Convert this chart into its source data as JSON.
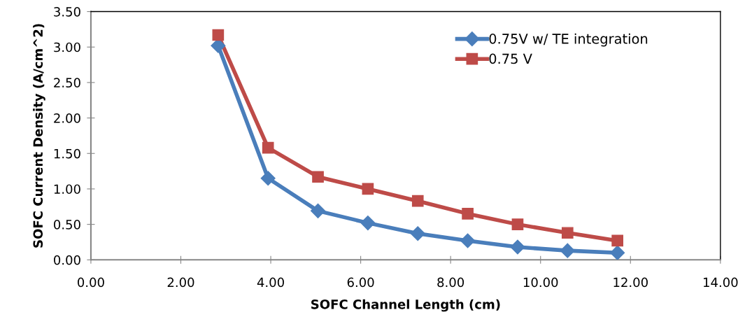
{
  "chart_data": {
    "type": "line",
    "xlabel": "SOFC Channel Length (cm)",
    "ylabel": "SOFC Current Density (A/cm^2)",
    "x": [
      2.83,
      3.94,
      5.05,
      6.16,
      7.27,
      8.38,
      9.49,
      10.6,
      11.71
    ],
    "series": [
      {
        "name": "0.75V w/ TE integration",
        "color": "#4a7ebb",
        "marker": "diamond",
        "values": [
          3.02,
          1.15,
          0.69,
          0.52,
          0.37,
          0.27,
          0.18,
          0.13,
          0.1
        ]
      },
      {
        "name": "0.75 V",
        "color": "#be4b48",
        "marker": "square",
        "values": [
          3.17,
          1.58,
          1.17,
          1.0,
          0.83,
          0.65,
          0.5,
          0.38,
          0.27
        ]
      }
    ],
    "xlim": [
      0,
      14
    ],
    "xticks": [
      {
        "value": 0,
        "label": "0.00"
      },
      {
        "value": 2,
        "label": "2.00"
      },
      {
        "value": 4,
        "label": "4.00"
      },
      {
        "value": 6,
        "label": "6.00"
      },
      {
        "value": 8,
        "label": "8.00"
      },
      {
        "value": 10,
        "label": "10.00"
      },
      {
        "value": 12,
        "label": "12.00"
      },
      {
        "value": 14,
        "label": "14.00"
      }
    ],
    "ylim": [
      0,
      3.5
    ],
    "yticks": [
      {
        "value": 0,
        "label": "0.00"
      },
      {
        "value": 0.5,
        "label": "0.50"
      },
      {
        "value": 1,
        "label": "1.00"
      },
      {
        "value": 1.5,
        "label": "1.50"
      },
      {
        "value": 2,
        "label": "2.00"
      },
      {
        "value": 2.5,
        "label": "2.50"
      },
      {
        "value": 3,
        "label": "3.00"
      },
      {
        "value": 3.5,
        "label": "3.50"
      }
    ],
    "grid": false,
    "legend": "top right",
    "line_style": "solid"
  }
}
